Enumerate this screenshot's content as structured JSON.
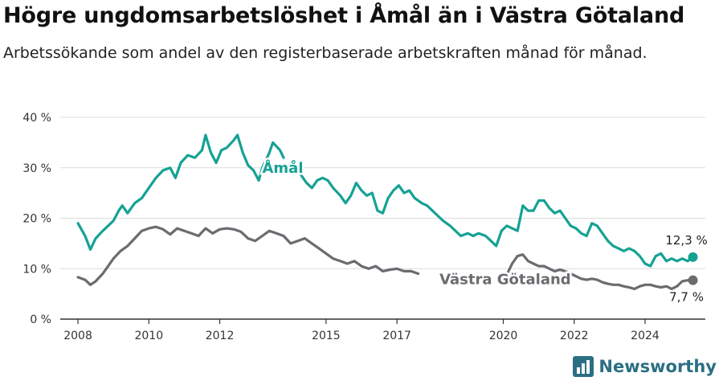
{
  "title": "Högre ungdomsarbetslöshet i Åmål än i Västra Götaland",
  "subtitle": "Arbetssökande som andel av den registerbaserade arbetskraften månad för månad.",
  "brand": {
    "name": "Newsworthy"
  },
  "colors": {
    "amal": "#15a294",
    "vg": "#6d6a70",
    "grid": "#dcdcdc",
    "axis": "#333333",
    "text": "#333333"
  },
  "chart_data": {
    "type": "line",
    "title": "Högre ungdomsarbetslöshet i Åmål än i Västra Götaland",
    "xlabel": "",
    "ylabel": "",
    "xlim": [
      2007.5,
      2025.7
    ],
    "ylim": [
      0,
      40
    ],
    "y_ticks": [
      {
        "value": 0,
        "label": "0 %"
      },
      {
        "value": 10,
        "label": "10 %"
      },
      {
        "value": 20,
        "label": "20 %"
      },
      {
        "value": 30,
        "label": "30 %"
      },
      {
        "value": 40,
        "label": "40 %"
      }
    ],
    "x_ticks": [
      {
        "value": 2008,
        "label": "2008"
      },
      {
        "value": 2010,
        "label": "2010"
      },
      {
        "value": 2012,
        "label": "2012"
      },
      {
        "value": 2015,
        "label": "2015"
      },
      {
        "value": 2017,
        "label": "2017"
      },
      {
        "value": 2020,
        "label": "2020"
      },
      {
        "value": 2022,
        "label": "2022"
      },
      {
        "value": 2024,
        "label": "2024"
      }
    ],
    "grid": true,
    "series": [
      {
        "name": "Åmål",
        "color": "#15a294",
        "label_at": [
          2013.2,
          29
        ],
        "end_label": "12,3 %",
        "points": [
          [
            2008.0,
            19.0
          ],
          [
            2008.2,
            16.5
          ],
          [
            2008.35,
            13.8
          ],
          [
            2008.5,
            16.0
          ],
          [
            2008.7,
            17.5
          ],
          [
            2008.85,
            18.5
          ],
          [
            2009.0,
            19.5
          ],
          [
            2009.15,
            21.5
          ],
          [
            2009.25,
            22.5
          ],
          [
            2009.4,
            21.0
          ],
          [
            2009.6,
            23.0
          ],
          [
            2009.8,
            24.0
          ],
          [
            2010.0,
            26.0
          ],
          [
            2010.2,
            28.0
          ],
          [
            2010.4,
            29.5
          ],
          [
            2010.6,
            30.0
          ],
          [
            2010.75,
            28.0
          ],
          [
            2010.9,
            31.0
          ],
          [
            2011.1,
            32.5
          ],
          [
            2011.3,
            32.0
          ],
          [
            2011.5,
            33.5
          ],
          [
            2011.6,
            36.5
          ],
          [
            2011.75,
            33.0
          ],
          [
            2011.9,
            31.0
          ],
          [
            2012.05,
            33.5
          ],
          [
            2012.2,
            34.0
          ],
          [
            2012.4,
            35.5
          ],
          [
            2012.5,
            36.5
          ],
          [
            2012.65,
            33.0
          ],
          [
            2012.8,
            30.5
          ],
          [
            2012.95,
            29.5
          ],
          [
            2013.1,
            27.5
          ],
          [
            2013.2,
            30.0
          ],
          [
            2013.4,
            33.0
          ],
          [
            2013.5,
            35.0
          ],
          [
            2013.7,
            33.5
          ],
          [
            2013.8,
            32.0
          ],
          [
            2014.3,
            28.5
          ],
          [
            2014.45,
            27.0
          ],
          [
            2014.6,
            26.0
          ],
          [
            2014.75,
            27.5
          ],
          [
            2014.9,
            28.0
          ],
          [
            2015.05,
            27.5
          ],
          [
            2015.2,
            26.0
          ],
          [
            2015.4,
            24.5
          ],
          [
            2015.55,
            23.0
          ],
          [
            2015.7,
            24.5
          ],
          [
            2015.85,
            27.0
          ],
          [
            2016.0,
            25.5
          ],
          [
            2016.15,
            24.5
          ],
          [
            2016.3,
            25.0
          ],
          [
            2016.45,
            21.5
          ],
          [
            2016.6,
            21.0
          ],
          [
            2016.75,
            24.0
          ],
          [
            2016.9,
            25.5
          ],
          [
            2017.05,
            26.5
          ],
          [
            2017.2,
            25.0
          ],
          [
            2017.35,
            25.5
          ],
          [
            2017.5,
            24.0
          ],
          [
            2017.7,
            23.0
          ],
          [
            2017.85,
            22.5
          ],
          [
            2018.0,
            21.5
          ],
          [
            2018.15,
            20.5
          ],
          [
            2018.3,
            19.5
          ],
          [
            2018.5,
            18.5
          ],
          [
            2018.65,
            17.5
          ],
          [
            2018.8,
            16.5
          ],
          [
            2019.0,
            17.0
          ],
          [
            2019.15,
            16.5
          ],
          [
            2019.3,
            17.0
          ],
          [
            2019.5,
            16.5
          ],
          [
            2019.65,
            15.5
          ],
          [
            2019.8,
            14.5
          ],
          [
            2019.95,
            17.5
          ],
          [
            2020.1,
            18.5
          ],
          [
            2020.25,
            18.0
          ],
          [
            2020.4,
            17.5
          ],
          [
            2020.55,
            22.5
          ],
          [
            2020.7,
            21.5
          ],
          [
            2020.85,
            21.5
          ],
          [
            2021.0,
            23.5
          ],
          [
            2021.15,
            23.5
          ],
          [
            2021.3,
            22.0
          ],
          [
            2021.45,
            21.0
          ],
          [
            2021.6,
            21.5
          ],
          [
            2021.75,
            20.0
          ],
          [
            2021.9,
            18.5
          ],
          [
            2022.05,
            18.0
          ],
          [
            2022.2,
            17.0
          ],
          [
            2022.35,
            16.5
          ],
          [
            2022.5,
            19.0
          ],
          [
            2022.65,
            18.5
          ],
          [
            2022.8,
            17.0
          ],
          [
            2022.95,
            15.5
          ],
          [
            2023.1,
            14.5
          ],
          [
            2023.25,
            14.0
          ],
          [
            2023.4,
            13.5
          ],
          [
            2023.55,
            14.0
          ],
          [
            2023.7,
            13.5
          ],
          [
            2023.85,
            12.5
          ],
          [
            2024.0,
            11.0
          ],
          [
            2024.15,
            10.5
          ],
          [
            2024.3,
            12.5
          ],
          [
            2024.45,
            13.0
          ],
          [
            2024.6,
            11.5
          ],
          [
            2024.75,
            12.0
          ],
          [
            2024.9,
            11.5
          ],
          [
            2025.05,
            12.0
          ],
          [
            2025.2,
            11.5
          ],
          [
            2025.35,
            12.3
          ]
        ]
      },
      {
        "name": "Västra Götaland",
        "color": "#6d6a70",
        "label_at": [
          2018.2,
          6.9
        ],
        "end_label": "7,7 %",
        "points": [
          [
            2008.0,
            8.3
          ],
          [
            2008.2,
            7.8
          ],
          [
            2008.35,
            6.8
          ],
          [
            2008.5,
            7.5
          ],
          [
            2008.7,
            9.0
          ],
          [
            2008.85,
            10.5
          ],
          [
            2009.0,
            12.0
          ],
          [
            2009.2,
            13.5
          ],
          [
            2009.4,
            14.5
          ],
          [
            2009.6,
            16.0
          ],
          [
            2009.8,
            17.5
          ],
          [
            2010.0,
            18.0
          ],
          [
            2010.2,
            18.3
          ],
          [
            2010.4,
            17.8
          ],
          [
            2010.6,
            16.8
          ],
          [
            2010.8,
            18.0
          ],
          [
            2011.0,
            17.5
          ],
          [
            2011.2,
            17.0
          ],
          [
            2011.4,
            16.5
          ],
          [
            2011.6,
            18.0
          ],
          [
            2011.8,
            17.0
          ],
          [
            2012.0,
            17.8
          ],
          [
            2012.2,
            18.0
          ],
          [
            2012.4,
            17.8
          ],
          [
            2012.6,
            17.3
          ],
          [
            2012.8,
            16.0
          ],
          [
            2013.0,
            15.5
          ],
          [
            2013.2,
            16.5
          ],
          [
            2013.4,
            17.5
          ],
          [
            2013.6,
            17.0
          ],
          [
            2013.8,
            16.5
          ],
          [
            2014.0,
            15.0
          ],
          [
            2014.2,
            15.5
          ],
          [
            2014.4,
            16.0
          ],
          [
            2014.6,
            15.0
          ],
          [
            2014.8,
            14.0
          ],
          [
            2015.0,
            13.0
          ],
          [
            2015.2,
            12.0
          ],
          [
            2015.4,
            11.5
          ],
          [
            2015.6,
            11.0
          ],
          [
            2015.8,
            11.5
          ],
          [
            2016.0,
            10.5
          ],
          [
            2016.2,
            10.0
          ],
          [
            2016.4,
            10.5
          ],
          [
            2016.6,
            9.5
          ],
          [
            2016.8,
            9.8
          ],
          [
            2017.0,
            10.0
          ],
          [
            2017.2,
            9.5
          ],
          [
            2017.4,
            9.5
          ],
          [
            2017.6,
            9.0
          ],
          [
            2020.1,
            8.8
          ],
          [
            2020.25,
            11.0
          ],
          [
            2020.4,
            12.5
          ],
          [
            2020.55,
            12.8
          ],
          [
            2020.7,
            11.5
          ],
          [
            2020.85,
            11.0
          ],
          [
            2021.0,
            10.5
          ],
          [
            2021.15,
            10.5
          ],
          [
            2021.3,
            10.0
          ],
          [
            2021.45,
            9.5
          ],
          [
            2021.6,
            9.8
          ],
          [
            2021.75,
            9.5
          ],
          [
            2021.9,
            9.0
          ],
          [
            2022.05,
            8.5
          ],
          [
            2022.2,
            8.0
          ],
          [
            2022.35,
            7.8
          ],
          [
            2022.5,
            8.0
          ],
          [
            2022.65,
            7.8
          ],
          [
            2022.8,
            7.3
          ],
          [
            2022.95,
            7.0
          ],
          [
            2023.1,
            6.8
          ],
          [
            2023.25,
            6.8
          ],
          [
            2023.4,
            6.5
          ],
          [
            2023.55,
            6.3
          ],
          [
            2023.7,
            6.0
          ],
          [
            2023.85,
            6.5
          ],
          [
            2024.0,
            6.8
          ],
          [
            2024.15,
            6.8
          ],
          [
            2024.3,
            6.5
          ],
          [
            2024.45,
            6.3
          ],
          [
            2024.6,
            6.5
          ],
          [
            2024.75,
            6.0
          ],
          [
            2024.9,
            6.5
          ],
          [
            2025.05,
            7.5
          ],
          [
            2025.2,
            7.7
          ],
          [
            2025.35,
            7.7
          ]
        ]
      }
    ]
  }
}
